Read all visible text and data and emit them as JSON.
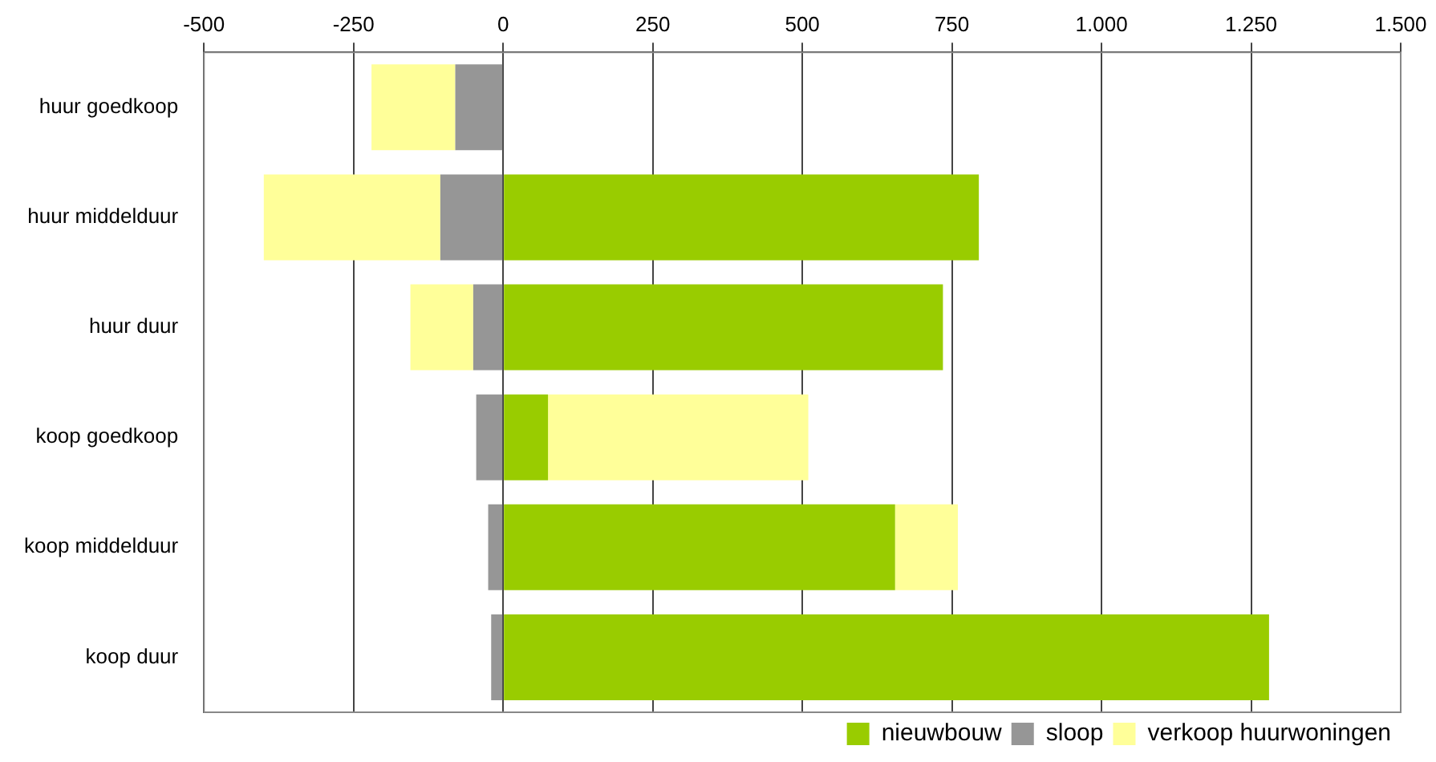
{
  "chart_data": {
    "type": "bar",
    "orientation": "horizontal",
    "stacked": true,
    "categories": [
      "huur goedkoop",
      "huur middelduur",
      "huur duur",
      "koop goedkoop",
      "koop middelduur",
      "koop duur"
    ],
    "series": [
      {
        "name": "nieuwbouw",
        "color": "#99cc00",
        "values": [
          null,
          795,
          735,
          75,
          655,
          1280
        ]
      },
      {
        "name": "sloop",
        "color": "#969696",
        "values": [
          -80,
          -105,
          -50,
          -45,
          -25,
          -20
        ]
      },
      {
        "name": "verkoop huurwoningen",
        "color": "#ffff99",
        "values": [
          -140,
          -295,
          -105,
          435,
          105,
          null
        ]
      }
    ],
    "xlim": [
      -500,
      1500
    ],
    "xticks": [
      -500,
      -250,
      0,
      250,
      500,
      750,
      {
        "value": 1000,
        "label": "1.000"
      },
      {
        "value": 1250,
        "label": "1.250"
      },
      {
        "value": 1500,
        "label": "1.500"
      }
    ],
    "grid": "x",
    "legend": "bottom right"
  }
}
